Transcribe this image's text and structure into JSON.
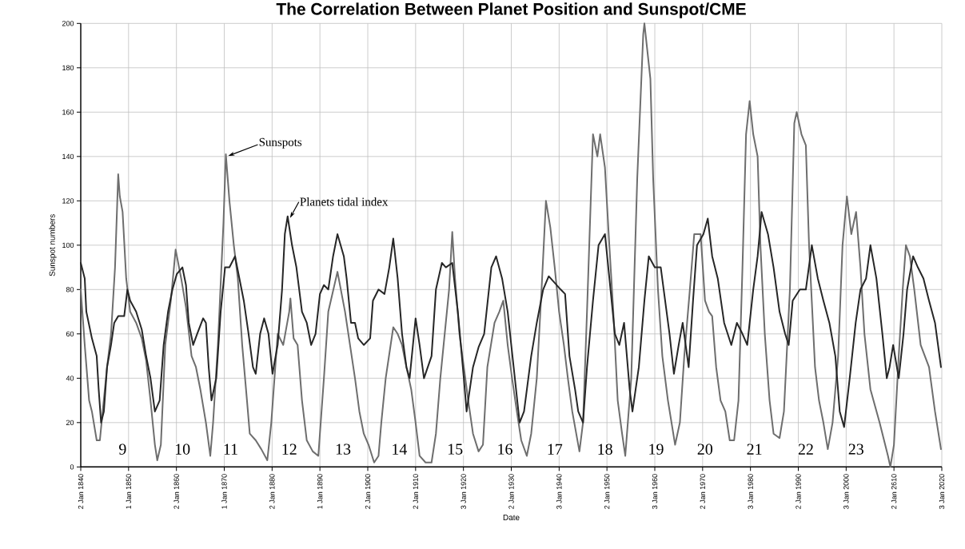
{
  "chart_data": {
    "type": "line",
    "title": "The Correlation Between Planet Position and Sunspot/CME",
    "xlabel": "Date",
    "ylabel": "Sunspot numbers",
    "xlim": [
      "1840-01-02",
      "2020-01-03"
    ],
    "xticks": [
      {
        "value": "1840-01-02",
        "label": "2 Jan 1840"
      },
      {
        "value": "1850-01-01",
        "label": "1 Jan 1850"
      },
      {
        "value": "1860-01-02",
        "label": "2 Jan 1860"
      },
      {
        "value": "1870-01-01",
        "label": "1 Jan 1870"
      },
      {
        "value": "1880-01-02",
        "label": "2 Jan 1880"
      },
      {
        "value": "1890-01-01",
        "label": "1 Jan 1890"
      },
      {
        "value": "1900-01-02",
        "label": "2 Jan 1900"
      },
      {
        "value": "1910-01-02",
        "label": "2 Jan 1910"
      },
      {
        "value": "1920-01-03",
        "label": "3 Jan 1920"
      },
      {
        "value": "1930-01-02",
        "label": "2 Jan 1930"
      },
      {
        "value": "1940-01-03",
        "label": "3 Jan 1940"
      },
      {
        "value": "1950-01-02",
        "label": "2 Jan 1950"
      },
      {
        "value": "1960-01-03",
        "label": "3 Jan 1960"
      },
      {
        "value": "1970-01-02",
        "label": "2 Jan 1970"
      },
      {
        "value": "1980-01-03",
        "label": "3 Jan 1980"
      },
      {
        "value": "1990-01-02",
        "label": "2 Jan 1990"
      },
      {
        "value": "2000-01-03",
        "label": "3 Jan 2000"
      },
      {
        "value": "2010-01-02",
        "label": "2 Jan 2610"
      },
      {
        "value": "2020-01-03",
        "label": "3 Jan 2020"
      }
    ],
    "ylim": [
      0,
      200
    ],
    "yticks": [
      0,
      20,
      40,
      60,
      80,
      100,
      120,
      140,
      160,
      180,
      200
    ],
    "grid": true,
    "series": [
      {
        "name": "Sunspots",
        "color": "#6e6e6e",
        "x": [
          "1840-01-02",
          "1840-11",
          "1841-10",
          "1842-05",
          "1843-05",
          "1844-01",
          "1844-08",
          "1845-07",
          "1846-05",
          "1847-03",
          "1847-11",
          "1848-03",
          "1848-10",
          "1849-07",
          "1850-05",
          "1851-08",
          "1852-10",
          "1853-09",
          "1854-08",
          "1855-07",
          "1856-01",
          "1856-10",
          "1857-09",
          "1858-11",
          "1859-11",
          "1861-01",
          "1862-01",
          "1863-03",
          "1864-02",
          "1865-01",
          "1866-03",
          "1867-02",
          "1867-09",
          "1868-09",
          "1869-11",
          "1870-05",
          "1871-02",
          "1872-01",
          "1872-11",
          "1873-10",
          "1874-10",
          "1875-05",
          "1876-08",
          "1877-10",
          "1879-01",
          "1879-11",
          "1881-03",
          "1882-05",
          "1883-08",
          "1883-11",
          "1884-07",
          "1885-05",
          "1886-04",
          "1887-04",
          "1888-07",
          "1889-09",
          "1890-11",
          "1891-10",
          "1893-09",
          "1895-04",
          "1897-05",
          "1898-04",
          "1899-03",
          "1900-03",
          "1901-05",
          "1902-04",
          "1902-11",
          "1903-10",
          "1905-05",
          "1906-04",
          "1907-03",
          "1908-02",
          "1909-02",
          "1910-01",
          "1910-11",
          "1912-02",
          "1913-05",
          "1914-04",
          "1915-03",
          "1916-02",
          "1917-01",
          "1917-09",
          "1918-04",
          "1919-03",
          "1920-02",
          "1921-01",
          "1922-01",
          "1923-03",
          "1924-02",
          "1925-01",
          "1926-07",
          "1927-07",
          "1928-05",
          "1929-04",
          "1930-03",
          "1931-03",
          "1932-02",
          "1933-04",
          "1934-03",
          "1935-05",
          "1936-05",
          "1937-04",
          "1938-03",
          "1939-02",
          "1940-01",
          "1941-01",
          "1941-11",
          "1942-10",
          "1944-04",
          "1945-01",
          "1945-11",
          "1947-02",
          "1948-01",
          "1948-08",
          "1949-08",
          "1950-07",
          "1951-05",
          "1952-04",
          "1953-03",
          "1953-11",
          "1955-02",
          "1956-05",
          "1957-08",
          "1957-11",
          "1959-02",
          "1959-09",
          "1960-09",
          "1961-08",
          "1962-10",
          "1964-04",
          "1965-04",
          "1966-03",
          "1967-05",
          "1968-04",
          "1969-08",
          "1970-07",
          "1971-05",
          "1972-01",
          "1972-11",
          "1973-10",
          "1974-10",
          "1975-09",
          "1976-08",
          "1977-07",
          "1978-05",
          "1979-02",
          "1979-11",
          "1980-08",
          "1981-07",
          "1982-02",
          "1983-01",
          "1984-01",
          "1984-11",
          "1986-02",
          "1987-01",
          "1988-04",
          "1989-03",
          "1989-09",
          "1990-09",
          "1991-08",
          "1992-04",
          "1993-07",
          "1994-05",
          "1995-04",
          "1996-03",
          "1997-03",
          "1998-05",
          "1999-04",
          "2000-03",
          "2001-02",
          "2002-02",
          "2003-01",
          "2003-11",
          "2005-02",
          "2007-01",
          "2008-10",
          "2009-04",
          "2010-01",
          "2011-01",
          "2011-11",
          "2012-07",
          "2013-05",
          "2014-04",
          "2015-08",
          "2017-05",
          "2018-08",
          "2019-11"
        ],
        "values": [
          80,
          55,
          30,
          25,
          12,
          12,
          25,
          45,
          60,
          90,
          132,
          122,
          115,
          85,
          70,
          65,
          58,
          48,
          30,
          10,
          3,
          10,
          55,
          75,
          98,
          85,
          72,
          50,
          45,
          35,
          20,
          5,
          20,
          55,
          110,
          141,
          120,
          100,
          85,
          55,
          30,
          15,
          12,
          8,
          3,
          20,
          60,
          55,
          70,
          76,
          58,
          55,
          30,
          12,
          7,
          5,
          40,
          70,
          88,
          70,
          40,
          25,
          15,
          10,
          2,
          5,
          20,
          40,
          63,
          60,
          55,
          45,
          35,
          20,
          5,
          2,
          2,
          15,
          40,
          60,
          80,
          106,
          85,
          60,
          45,
          30,
          15,
          7,
          10,
          45,
          65,
          70,
          75,
          55,
          40,
          25,
          12,
          5,
          15,
          40,
          80,
          120,
          108,
          90,
          70,
          55,
          40,
          25,
          7,
          20,
          70,
          150,
          140,
          150,
          135,
          100,
          70,
          30,
          15,
          5,
          40,
          130,
          195,
          200,
          175,
          130,
          80,
          50,
          30,
          10,
          20,
          50,
          80,
          105,
          105,
          75,
          70,
          68,
          45,
          30,
          25,
          12,
          12,
          30,
          90,
          150,
          165,
          150,
          140,
          100,
          60,
          30,
          15,
          13,
          25,
          80,
          155,
          160,
          150,
          145,
          100,
          45,
          30,
          20,
          8,
          20,
          50,
          100,
          122,
          105,
          115,
          90,
          60,
          35,
          20,
          5,
          0,
          10,
          50,
          80,
          100,
          95,
          80,
          55,
          45,
          25,
          8
        ]
      },
      {
        "name": "Planets tidal index",
        "color": "#262626",
        "x": [
          "1840-01-02",
          "1840-11",
          "1841-03",
          "1842-05",
          "1843-05",
          "1843-10",
          "1844-04",
          "1844-11",
          "1845-07",
          "1846-05",
          "1847-01",
          "1847-11",
          "1849-02",
          "1849-10",
          "1850-05",
          "1851-08",
          "1852-10",
          "1853-09",
          "1854-08",
          "1855-07",
          "1856-07",
          "1857-05",
          "1858-04",
          "1859-03",
          "1860-02",
          "1861-04",
          "1862-01",
          "1862-08",
          "1863-07",
          "1864-05",
          "1865-08",
          "1866-03",
          "1866-10",
          "1867-05",
          "1868-05",
          "1869-04",
          "1870-03",
          "1871-02",
          "1872-04",
          "1873-03",
          "1874-02",
          "1875-02",
          "1876-01",
          "1876-08",
          "1877-07",
          "1878-05",
          "1879-04",
          "1880-02",
          "1881-03",
          "1882-02",
          "1882-09",
          "1883-04",
          "1884-03",
          "1885-02",
          "1886-04",
          "1887-04",
          "1888-03",
          "1889-02",
          "1890-01",
          "1890-11",
          "1891-10",
          "1892-10",
          "1893-09",
          "1895-01",
          "1895-08",
          "1896-07",
          "1897-05",
          "1898-01",
          "1899-03",
          "1900-07",
          "1901-02",
          "1902-04",
          "1903-07",
          "1904-07",
          "1905-05",
          "1906-04",
          "1907-03",
          "1908-02",
          "1908-10",
          "1910-01",
          "1910-11",
          "1911-10",
          "1913-05",
          "1914-04",
          "1915-07",
          "1916-05",
          "1917-09",
          "1918-11",
          "1920-02",
          "1920-09",
          "1922-01",
          "1923-03",
          "1924-05",
          "1925-11",
          "1926-11",
          "1928-02",
          "1929-04",
          "1930-07",
          "1931-10",
          "1932-09",
          "1934-03",
          "1935-05",
          "1936-09",
          "1937-11",
          "1939-02",
          "1940-05",
          "1941-04",
          "1942-03",
          "1943-05",
          "1944-01",
          "1945-01",
          "1945-11",
          "1947-02",
          "1948-04",
          "1949-08",
          "1950-10",
          "1951-09",
          "1952-08",
          "1953-08",
          "1954-10",
          "1955-05",
          "1956-09",
          "1957-11",
          "1958-10",
          "1960-01",
          "1961-04",
          "1962-03",
          "1963-02",
          "1964-01",
          "1965-01",
          "1965-11",
          "1967-02",
          "1968-01",
          "1968-11",
          "1970-03",
          "1971-02",
          "1972-01",
          "1973-03",
          "1974-07",
          "1976-01",
          "1977-03",
          "1978-05",
          "1979-05",
          "1980-08",
          "1981-07",
          "1982-05",
          "1983-09",
          "1984-11",
          "1986-02",
          "1987-04",
          "1988-01",
          "1988-11",
          "1990-05",
          "1991-08",
          "1992-11",
          "1994-02",
          "1995-04",
          "1996-07",
          "1997-10",
          "1998-09",
          "1999-08",
          "2000-10",
          "2002-01",
          "2003-01",
          "2004-03",
          "2005-02",
          "2006-05",
          "2007-08",
          "2008-07",
          "2009-02",
          "2009-11",
          "2011-01",
          "2012-01",
          "2012-10",
          "2014-01",
          "2015-01",
          "2016-03",
          "2017-05",
          "2018-08",
          "2019-11"
        ],
        "values": [
          92,
          85,
          70,
          58,
          50,
          35,
          20,
          25,
          45,
          55,
          65,
          68,
          68,
          80,
          75,
          70,
          62,
          50,
          40,
          25,
          30,
          55,
          70,
          80,
          87,
          90,
          82,
          65,
          55,
          60,
          67,
          65,
          45,
          30,
          40,
          70,
          90,
          90,
          95,
          85,
          75,
          60,
          45,
          42,
          60,
          67,
          60,
          42,
          55,
          80,
          105,
          113,
          100,
          90,
          70,
          65,
          55,
          60,
          78,
          82,
          80,
          95,
          105,
          95,
          85,
          65,
          65,
          58,
          55,
          58,
          75,
          80,
          78,
          90,
          103,
          85,
          60,
          45,
          40,
          67,
          55,
          40,
          50,
          80,
          92,
          90,
          92,
          70,
          40,
          25,
          45,
          54,
          60,
          90,
          95,
          85,
          70,
          45,
          20,
          25,
          50,
          65,
          80,
          86,
          83,
          80,
          78,
          50,
          35,
          25,
          20,
          45,
          75,
          100,
          105,
          80,
          60,
          55,
          65,
          35,
          25,
          45,
          75,
          95,
          90,
          90,
          75,
          60,
          42,
          55,
          65,
          45,
          75,
          100,
          105,
          112,
          95,
          85,
          65,
          55,
          65,
          60,
          55,
          80,
          95,
          115,
          105,
          90,
          70,
          60,
          55,
          75,
          80,
          80,
          100,
          85,
          75,
          65,
          50,
          25,
          18,
          40,
          65,
          80,
          85,
          100,
          85,
          60,
          40,
          45,
          55,
          40,
          60,
          80,
          95,
          90,
          85,
          75,
          65,
          45
        ]
      }
    ],
    "annotations": [
      {
        "text": "9",
        "x": "1848-10",
        "y": 8
      },
      {
        "text": "10",
        "x": "1861-04",
        "y": 8
      },
      {
        "text": "11",
        "x": "1871-05",
        "y": 8
      },
      {
        "text": "12",
        "x": "1883-08",
        "y": 8
      },
      {
        "text": "13",
        "x": "1894-11",
        "y": 8
      },
      {
        "text": "14",
        "x": "1906-08",
        "y": 8
      },
      {
        "text": "15",
        "x": "1918-04",
        "y": 8
      },
      {
        "text": "16",
        "x": "1928-09",
        "y": 8
      },
      {
        "text": "17",
        "x": "1939-02",
        "y": 8
      },
      {
        "text": "18",
        "x": "1949-08",
        "y": 8
      },
      {
        "text": "19",
        "x": "1960-04",
        "y": 8
      },
      {
        "text": "20",
        "x": "1970-07",
        "y": 8
      },
      {
        "text": "21",
        "x": "1980-11",
        "y": 8
      },
      {
        "text": "22",
        "x": "1991-08",
        "y": 8
      },
      {
        "text": "23",
        "x": "2002-02",
        "y": 8
      }
    ]
  }
}
